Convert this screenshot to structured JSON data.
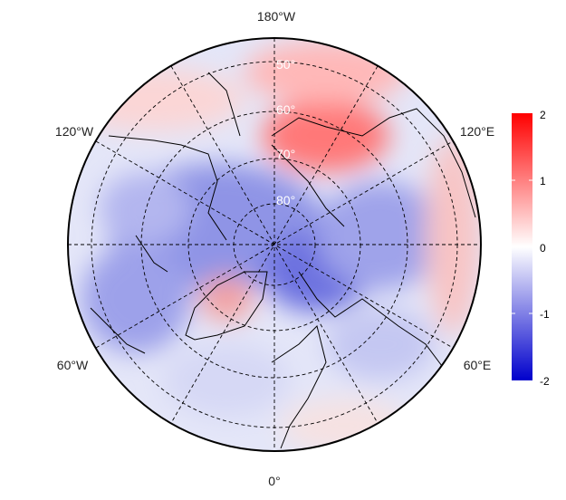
{
  "map": {
    "projection": "north-polar-stereographic",
    "longitude_labels": {
      "top": "180°W",
      "upper_left": "120°W",
      "upper_right": "120°E",
      "lower_left": "60°W",
      "lower_right": "60°E",
      "bottom": "0°"
    },
    "latitude_labels": [
      "50°",
      "60°",
      "70°",
      "80°"
    ]
  },
  "colorbar": {
    "min": -2,
    "max": 2,
    "ticks": [
      "2",
      "1",
      "0",
      "-1",
      "-2"
    ],
    "colors": {
      "high": "#ff0000",
      "mid": "#ffffff",
      "low": "#0000cc"
    }
  }
}
